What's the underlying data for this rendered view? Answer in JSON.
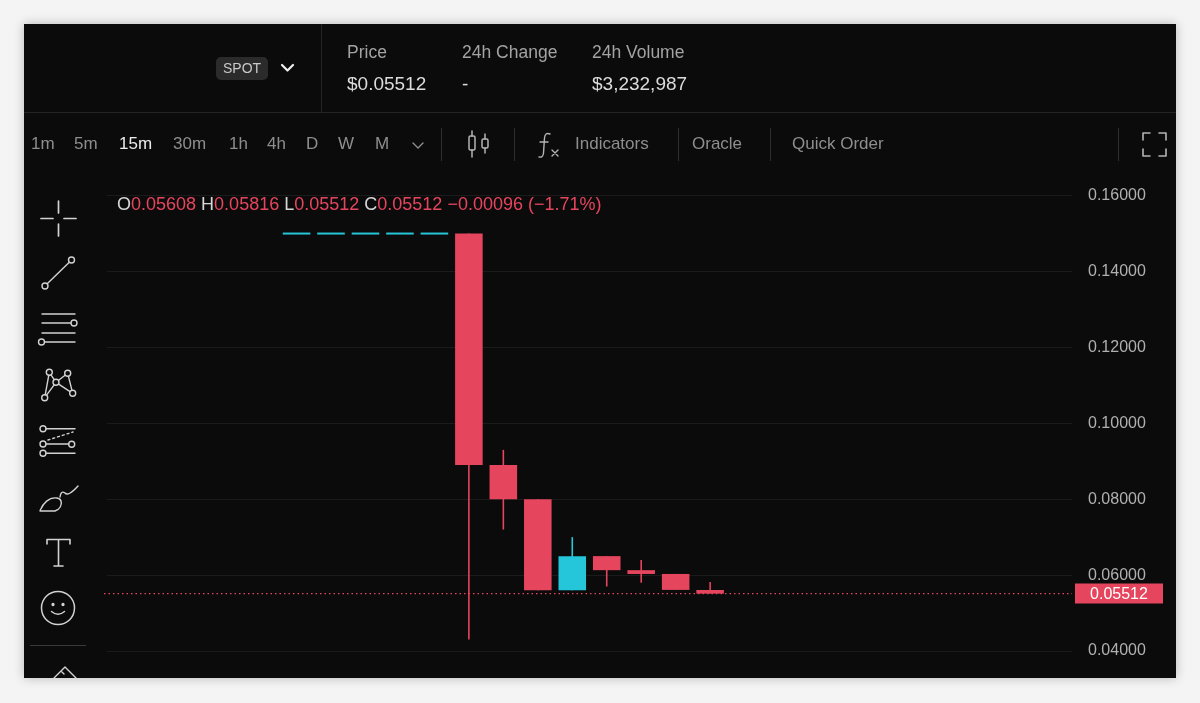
{
  "chart_data": {
    "type": "candlestick",
    "categories": [
      null,
      null,
      null,
      null,
      null,
      null,
      null,
      null,
      null,
      null,
      null,
      null,
      null,
      null,
      null,
      null,
      null,
      null,
      null,
      null,
      null,
      null,
      null,
      null,
      null,
      null,
      null,
      null
    ],
    "ohlc": [
      null,
      null,
      null,
      null,
      null,
      [
        0.15,
        0.15,
        0.15,
        0.15
      ],
      [
        0.15,
        0.15,
        0.15,
        0.15
      ],
      [
        0.15,
        0.15,
        0.15,
        0.15
      ],
      [
        0.15,
        0.15,
        0.15,
        0.15
      ],
      [
        0.15,
        0.15,
        0.15,
        0.15
      ],
      [
        0.15,
        0.15,
        0.043,
        0.089
      ],
      [
        0.089,
        0.093,
        0.072,
        0.08
      ],
      [
        0.08,
        0.08,
        0.056,
        0.056
      ],
      [
        0.056,
        0.07,
        0.056,
        0.065
      ],
      [
        0.065,
        0.065,
        0.057,
        0.0613
      ],
      [
        0.0613,
        0.064,
        0.058,
        0.0603
      ],
      [
        0.0603,
        0.0603,
        0.0561,
        0.0561
      ],
      [
        0.05608,
        0.05816,
        0.05512,
        0.05512
      ],
      null,
      null,
      null,
      null,
      null,
      null,
      null,
      null,
      null,
      null
    ],
    "colors": [
      null,
      null,
      null,
      null,
      null,
      "#26c6da",
      "#26c6da",
      "#26c6da",
      "#26c6da",
      "#26c6da",
      "#e6455e",
      "#e6455e",
      "#e6455e",
      "#26c6da",
      "#e6455e",
      "#e6455e",
      "#e6455e",
      "#e6455e",
      null,
      null,
      null,
      null,
      null,
      null,
      null,
      null,
      null,
      null
    ],
    "ylim": [
      0.04,
      0.16
    ],
    "yticks": [
      {
        "value": 0.04,
        "label": "0.04000"
      },
      {
        "value": 0.06,
        "label": "0.06000"
      },
      {
        "value": 0.08,
        "label": "0.08000"
      },
      {
        "value": 0.1,
        "label": "0.10000"
      },
      {
        "value": 0.12,
        "label": "0.12000"
      },
      {
        "value": 0.14,
        "label": "0.14000"
      },
      {
        "value": 0.16,
        "label": "0.16000"
      }
    ],
    "grid": "y",
    "tick_labels": "y",
    "ref_lines": [
      {
        "axis": "y",
        "value": 0.05512,
        "label": "0.05512",
        "color": "#e6455e",
        "line_style": "dotted"
      }
    ],
    "annotations": [
      "SPOT",
      "Price",
      "$0.05512",
      "24h Change",
      "-",
      "24h Volume",
      "$3,232,987",
      "1m",
      "5m",
      "15m",
      "30m",
      "1h",
      "4h",
      "D",
      "W",
      "M",
      "Indicators",
      "Oracle",
      "Quick Order",
      "O0.05608 H0.05816 L0.05512 C0.05512 −0.00096 (−1.71%)"
    ]
  }
}
